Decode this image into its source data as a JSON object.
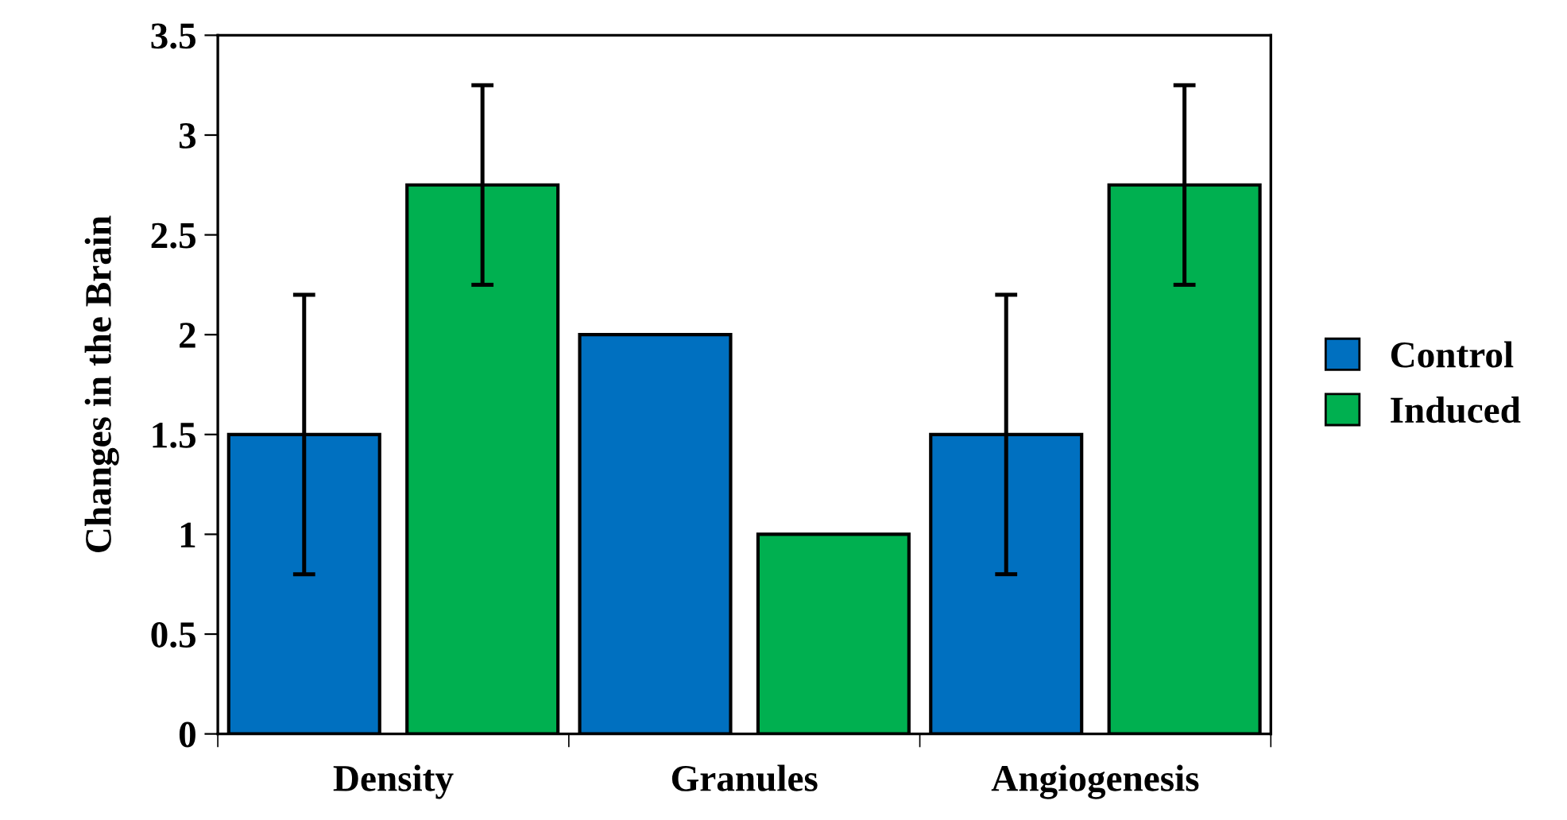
{
  "chart_data": {
    "type": "bar",
    "ylabel": "Changes in the Brain",
    "categories": [
      "Density",
      "Granules",
      "Angiogenesis"
    ],
    "series": [
      {
        "name": "Control",
        "color": "#0070c0",
        "values": [
          1.5,
          2,
          1.5
        ],
        "errors": [
          0.7,
          null,
          0.7
        ]
      },
      {
        "name": "Induced",
        "color": "#00b050",
        "values": [
          2.75,
          1,
          2.75
        ],
        "errors": [
          0.5,
          null,
          0.5
        ]
      }
    ],
    "ylim": [
      0,
      3.5
    ],
    "yticks": [
      0,
      0.5,
      1,
      1.5,
      2,
      2.5,
      3,
      3.5
    ],
    "grid": false,
    "legend": "right"
  }
}
